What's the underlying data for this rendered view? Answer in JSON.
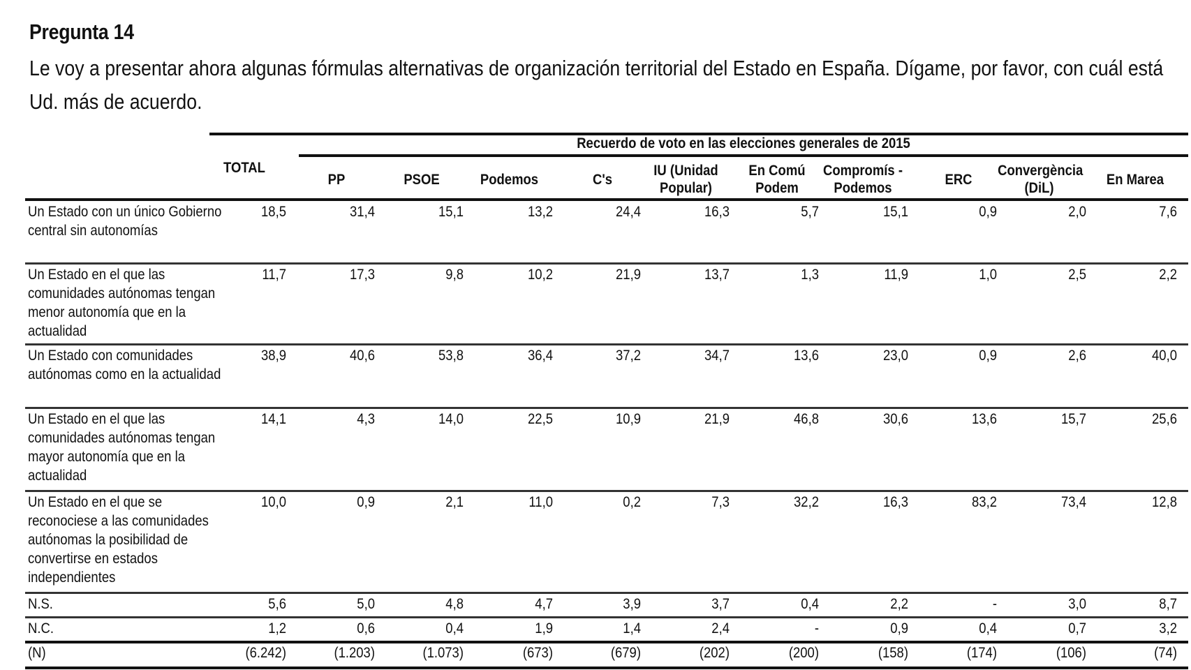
{
  "document": {
    "title": "Pregunta 14",
    "question": "Le voy a presentar ahora algunas fórmulas alternativas de organización territorial del Estado en España. Dígame, por favor, con cuál está Ud. más de acuerdo."
  },
  "table": {
    "group_header": "Recuerdo de voto en las elecciones generales de 2015",
    "columns": [
      {
        "label": "TOTAL"
      },
      {
        "label": "PP"
      },
      {
        "label": "PSOE"
      },
      {
        "label": "Podemos"
      },
      {
        "label": "C's"
      },
      {
        "label": "IU (Unidad Popular)"
      },
      {
        "label": "En Comú Podem"
      },
      {
        "label": "Compromís -Podemos"
      },
      {
        "label": "ERC"
      },
      {
        "label": "Convergència (DiL)"
      },
      {
        "label": "En Marea"
      }
    ],
    "rows": [
      {
        "label": "Un Estado con un único Gobierno central sin autonomías",
        "values": [
          "18,5",
          "31,4",
          "15,1",
          "13,2",
          "24,4",
          "16,3",
          "5,7",
          "15,1",
          "0,9",
          "2,0",
          "7,6"
        ]
      },
      {
        "label": "Un Estado en el que las comunidades autónomas tengan menor autonomía que en la actualidad",
        "values": [
          "11,7",
          "17,3",
          "9,8",
          "10,2",
          "21,9",
          "13,7",
          "1,3",
          "11,9",
          "1,0",
          "2,5",
          "2,2"
        ]
      },
      {
        "label": "Un Estado con comunidades autónomas como en la actualidad",
        "values": [
          "38,9",
          "40,6",
          "53,8",
          "36,4",
          "37,2",
          "34,7",
          "13,6",
          "23,0",
          "0,9",
          "2,6",
          "40,0"
        ]
      },
      {
        "label": "Un Estado en el que las comunidades autónomas tengan mayor autonomía que en la actualidad",
        "values": [
          "14,1",
          "4,3",
          "14,0",
          "22,5",
          "10,9",
          "21,9",
          "46,8",
          "30,6",
          "13,6",
          "15,7",
          "25,6"
        ]
      },
      {
        "label": "Un Estado en el que se reconociese a las comunidades autónomas la posibilidad de convertirse en estados independientes",
        "values": [
          "10,0",
          "0,9",
          "2,1",
          "11,0",
          "0,2",
          "7,3",
          "32,2",
          "16,3",
          "83,2",
          "73,4",
          "12,8"
        ]
      },
      {
        "label": "N.S.",
        "values": [
          "5,6",
          "5,0",
          "4,8",
          "4,7",
          "3,9",
          "3,7",
          "0,4",
          "2,2",
          "-",
          "3,0",
          "8,7"
        ]
      },
      {
        "label": "N.C.",
        "values": [
          "1,2",
          "0,6",
          "0,4",
          "1,9",
          "1,4",
          "2,4",
          "-",
          "0,9",
          "0,4",
          "0,7",
          "3,2"
        ]
      },
      {
        "label": "(N)",
        "values": [
          "(6.242)",
          "(1.203)",
          "(1.073)",
          "(673)",
          "(679)",
          "(202)",
          "(200)",
          "(158)",
          "(174)",
          "(106)",
          "(74)"
        ]
      }
    ]
  }
}
